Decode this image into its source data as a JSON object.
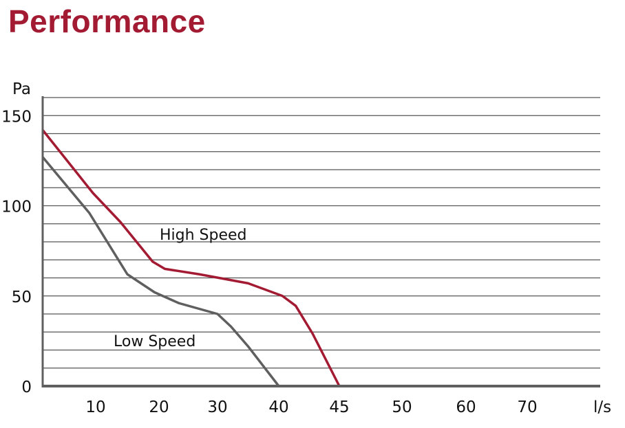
{
  "title": "Performance",
  "chart_data": {
    "type": "line",
    "title": "Performance",
    "ylabel": "Pa",
    "xlabel": "l/s",
    "ylim": [
      0,
      160
    ],
    "yticks": [
      0,
      50,
      100,
      150
    ],
    "ygrid_step": 10,
    "xticks": [
      10,
      20,
      30,
      40,
      45,
      50,
      60,
      70
    ],
    "grid": "horizontal",
    "colors": {
      "high": "#a31b33",
      "low": "#5f5f5f",
      "axis": "#5f5f5f",
      "grid": "#555555"
    },
    "series": [
      {
        "name": "High Speed",
        "color": "#a31b33",
        "x": [
          0,
          9.5,
          13.9,
          19.0,
          21.0,
          26.9,
          35.0,
          40.3,
          41.4,
          42.8,
          45
        ],
        "y": [
          142,
          107,
          91,
          69,
          65,
          62,
          57,
          50,
          44.5,
          29,
          0
        ]
      },
      {
        "name": "Low Speed",
        "color": "#5f5f5f",
        "x": [
          0,
          8.8,
          15.0,
          19.3,
          23.4,
          30.0,
          32.2,
          35.0,
          40
        ],
        "y": [
          127,
          96,
          62,
          52,
          46,
          40,
          33,
          22,
          0
        ]
      }
    ]
  }
}
